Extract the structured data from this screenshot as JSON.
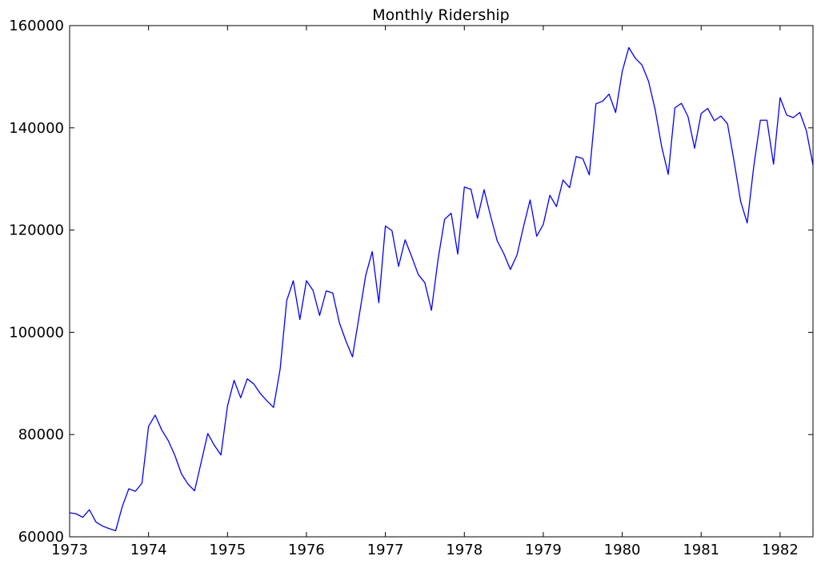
{
  "chart_data": {
    "type": "line",
    "title": "Monthly Ridership",
    "xlabel": "",
    "ylabel": "",
    "x_start": "1973-01",
    "x_step": "month",
    "x_ticks": [
      "1973",
      "1974",
      "1975",
      "1976",
      "1977",
      "1978",
      "1979",
      "1980",
      "1981",
      "1982"
    ],
    "y_ticks": [
      "60000",
      "80000",
      "100000",
      "120000",
      "140000",
      "160000"
    ],
    "xlim": [
      "1973-01",
      "1982-06"
    ],
    "ylim": [
      60000,
      160000
    ],
    "grid": false,
    "legend": "none",
    "series": [
      {
        "color": "#0000ff",
        "values": [
          64700,
          64500,
          63800,
          65300,
          62900,
          62100,
          61600,
          61200,
          65900,
          69400,
          68900,
          70500,
          81600,
          83800,
          80900,
          78800,
          75900,
          72300,
          70300,
          69000,
          74600,
          80200,
          77900,
          76000,
          85600,
          90600,
          87200,
          90900,
          89900,
          88000,
          86600,
          85300,
          92800,
          106200,
          110100,
          102500,
          110100,
          108200,
          103300,
          108100,
          107700,
          101900,
          98300,
          95200,
          103100,
          111100,
          115800,
          105800,
          120800,
          119900,
          112900,
          118100,
          114800,
          111300,
          109700,
          104300,
          114200,
          122100,
          123300,
          115300,
          128400,
          128000,
          122300,
          127900,
          122700,
          117900,
          115400,
          112300,
          115100,
          120700,
          125900,
          118800,
          121100,
          126800,
          124600,
          129800,
          128300,
          134400,
          134000,
          130800,
          144700,
          145200,
          146600,
          143000,
          151000,
          155700,
          153600,
          152300,
          149100,
          143600,
          136300,
          130900,
          143900,
          144800,
          142200,
          136000,
          142800,
          143800,
          141400,
          142300,
          140800,
          133500,
          125600,
          121400,
          132500,
          141500,
          141500,
          132900,
          145900,
          142500,
          142000,
          143000,
          139400,
          132700
        ]
      }
    ]
  }
}
